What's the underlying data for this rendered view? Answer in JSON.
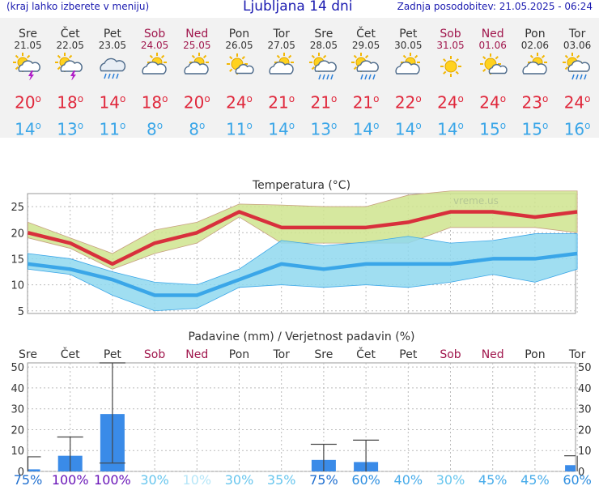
{
  "header": {
    "menu_hint": "(kraj lahko izberete v meniju)",
    "title": "Ljubljana 14 dni",
    "updated": "Zadnja posodobitev: 21.05.2025 - 06:24"
  },
  "days": [
    {
      "name": "Sre",
      "date": "21.05",
      "weekend": false,
      "icon": "sun-cloud-thunder-icon",
      "tmax": "20",
      "tmin": "14"
    },
    {
      "name": "Čet",
      "date": "22.05",
      "weekend": false,
      "icon": "sun-cloud-thunder-icon",
      "tmax": "18",
      "tmin": "13"
    },
    {
      "name": "Pet",
      "date": "23.05",
      "weekend": false,
      "icon": "cloud-rain-icon",
      "tmax": "14",
      "tmin": "11"
    },
    {
      "name": "Sob",
      "date": "24.05",
      "weekend": true,
      "icon": "partly-cloudy-icon",
      "tmax": "18",
      "tmin": "8"
    },
    {
      "name": "Ned",
      "date": "25.05",
      "weekend": true,
      "icon": "partly-cloudy-icon",
      "tmax": "20",
      "tmin": "8"
    },
    {
      "name": "Pon",
      "date": "26.05",
      "weekend": false,
      "icon": "sun-small-cloud-icon",
      "tmax": "24",
      "tmin": "11"
    },
    {
      "name": "Tor",
      "date": "27.05",
      "weekend": false,
      "icon": "partly-cloudy-icon",
      "tmax": "21",
      "tmin": "14"
    },
    {
      "name": "Sre",
      "date": "28.05",
      "weekend": false,
      "icon": "sun-cloud-rain-icon",
      "tmax": "21",
      "tmin": "13"
    },
    {
      "name": "Čet",
      "date": "29.05",
      "weekend": false,
      "icon": "sun-cloud-rain-icon",
      "tmax": "21",
      "tmin": "14"
    },
    {
      "name": "Pet",
      "date": "30.05",
      "weekend": false,
      "icon": "partly-cloudy-icon",
      "tmax": "22",
      "tmin": "14"
    },
    {
      "name": "Sob",
      "date": "31.05",
      "weekend": true,
      "icon": "sun-icon",
      "tmax": "24",
      "tmin": "14"
    },
    {
      "name": "Ned",
      "date": "01.06",
      "weekend": true,
      "icon": "sun-small-cloud-icon",
      "tmax": "24",
      "tmin": "15"
    },
    {
      "name": "Pon",
      "date": "02.06",
      "weekend": false,
      "icon": "partly-cloudy-icon",
      "tmax": "23",
      "tmin": "15"
    },
    {
      "name": "Tor",
      "date": "03.06",
      "weekend": false,
      "icon": "sun-cloud-rain-icon",
      "tmax": "24",
      "tmin": "16"
    }
  ],
  "chart_data": [
    {
      "type": "line",
      "title": "Temperatura (°C)",
      "watermark": "vreme.us",
      "ylim": [
        4.5,
        27.5
      ],
      "yticks": [
        5,
        10,
        15,
        20,
        25
      ],
      "grid": true,
      "x": [
        "21.05",
        "22.05",
        "23.05",
        "24.05",
        "25.05",
        "26.05",
        "27.05",
        "28.05",
        "29.05",
        "30.05",
        "31.05",
        "01.06",
        "02.06",
        "03.06"
      ],
      "series": [
        {
          "role": "max",
          "color": "#d8303c",
          "values": [
            20,
            18,
            14,
            18,
            20,
            24,
            21,
            21,
            21,
            22,
            24,
            24,
            23,
            24
          ]
        },
        {
          "role": "max-range",
          "color": "#cfe48e",
          "low": [
            19,
            17,
            13,
            16,
            18,
            23,
            18,
            18,
            18,
            18,
            21,
            21,
            21,
            20
          ],
          "high": [
            22,
            19,
            16,
            20.5,
            22,
            25.5,
            25.3,
            25,
            25,
            27.2,
            28,
            28,
            28,
            28
          ]
        },
        {
          "role": "min",
          "color": "#3aa6e8",
          "values": [
            14,
            13,
            11,
            8,
            8,
            11,
            14,
            13,
            14,
            14,
            14,
            15,
            15,
            16
          ]
        },
        {
          "role": "min-range",
          "color": "#7fd6ec",
          "low": [
            13,
            12,
            8,
            5,
            5.5,
            9.5,
            10,
            9.5,
            10,
            9.5,
            10.5,
            12,
            10.5,
            13
          ]
        },
        {
          "role": "min-range-high",
          "values": [
            16,
            15,
            12.5,
            10.5,
            10,
            13,
            18.5,
            17.5,
            18.2,
            19.3,
            18,
            18.5,
            19.8,
            19.8
          ]
        }
      ]
    },
    {
      "type": "bar",
      "title": "Padavine (mm) / Verjetnost padavin (%)",
      "ylim": [
        0,
        52
      ],
      "yticks": [
        0,
        10,
        20,
        30,
        40,
        50
      ],
      "categories": [
        "Sre",
        "Čet",
        "Pet",
        "Sob",
        "Ned",
        "Pon",
        "Tor",
        "Sre",
        "Čet",
        "Pet",
        "Sob",
        "Ned",
        "Pon",
        "Tor"
      ],
      "weekend": [
        false,
        false,
        false,
        true,
        true,
        false,
        false,
        false,
        false,
        false,
        true,
        true,
        false,
        false
      ],
      "values": [
        1,
        7.5,
        27.5,
        0,
        0,
        0,
        0,
        5.5,
        4.5,
        0,
        0,
        0,
        0,
        3
      ],
      "err_low": [
        0,
        0,
        4,
        null,
        null,
        null,
        null,
        0,
        0,
        null,
        null,
        null,
        null,
        0
      ],
      "err_high": [
        7,
        16.5,
        52,
        null,
        null,
        null,
        null,
        13,
        15,
        null,
        null,
        null,
        null,
        7.5
      ],
      "probability": [
        "75%",
        "100%",
        "100%",
        "30%",
        "10%",
        "30%",
        "35%",
        "75%",
        "60%",
        "40%",
        "30%",
        "45%",
        "45%",
        "60%"
      ],
      "prob_colors": [
        "#1f6fd0",
        "#6a16b8",
        "#6a16b8",
        "#68c6ee",
        "#b6e6f8",
        "#68c6ee",
        "#68c6ee",
        "#1f6fd0",
        "#2f8fe0",
        "#48acea",
        "#68c6ee",
        "#48acea",
        "#48acea",
        "#2f8fe0"
      ]
    }
  ]
}
